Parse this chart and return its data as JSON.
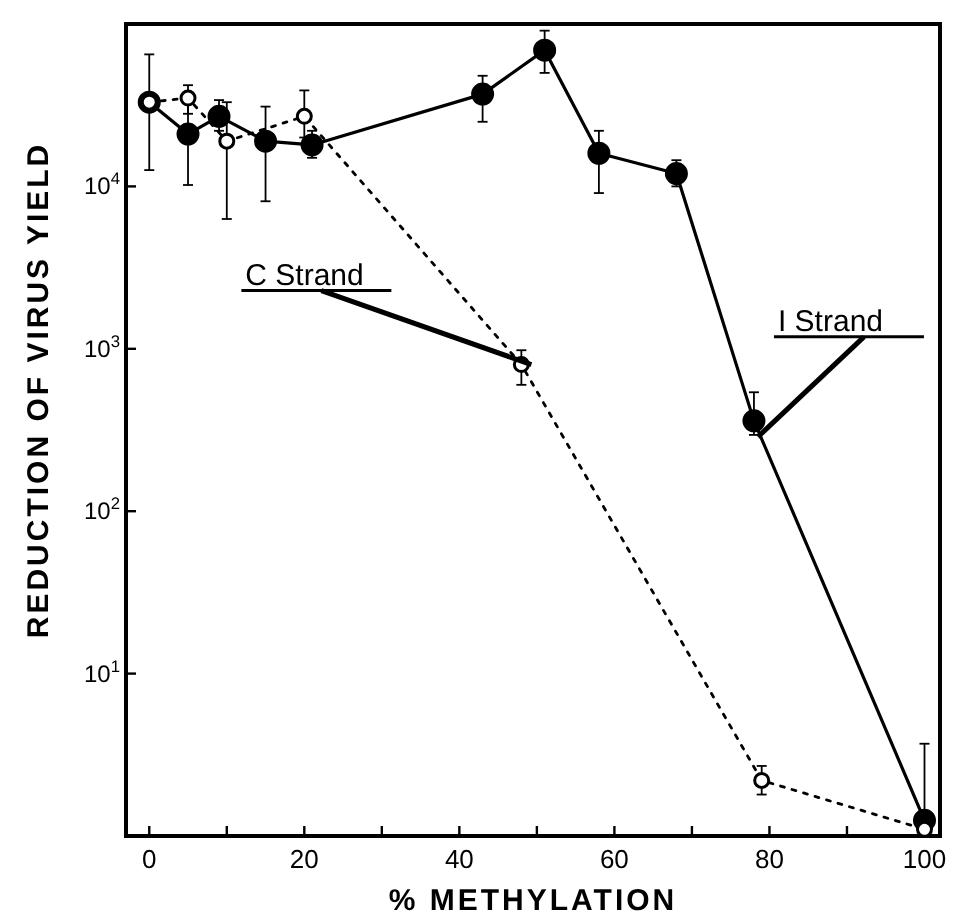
{
  "chart_data": {
    "type": "line",
    "xlabel": "% METHYLATION",
    "ylabel": "REDUCTION OF VIRUS YIELD",
    "log": "y",
    "xlim": [
      -3,
      102
    ],
    "ylim": [
      1,
      100000
    ],
    "xticks": [
      0,
      {
        "value": 10,
        "label": null
      },
      20,
      {
        "value": 30,
        "label": null
      },
      40,
      {
        "value": 50,
        "label": null
      },
      60,
      {
        "value": 70,
        "label": null
      },
      80,
      {
        "value": 90,
        "label": null
      },
      100
    ],
    "yticks": [
      {
        "value": 10,
        "label": "10$^{1}$"
      },
      {
        "value": 100,
        "label": "10$^{2}$"
      },
      {
        "value": 1000,
        "label": "10$^{3}$"
      },
      {
        "value": 10000,
        "label": "10$^{4}$"
      }
    ],
    "grid": false,
    "marker": "circle",
    "series": [
      {
        "name": "C Strand",
        "color": "#000000",
        "line_style": "dotted",
        "x": [
          0,
          5,
          10,
          20,
          48,
          79,
          100
        ],
        "values": [
          33000,
          35000,
          19000,
          27000,
          800,
          2.2,
          1.1
        ],
        "errors": [
          null,
          [
            28000,
            42000
          ],
          [
            6300,
            33000
          ],
          [
            20000,
            39000
          ],
          [
            600,
            980
          ],
          [
            1.8,
            2.7
          ],
          null
        ]
      },
      {
        "name": "I Strand",
        "color": "#000000",
        "line_style": "solid",
        "x": [
          0,
          5,
          9,
          15,
          21,
          43,
          51,
          58,
          68,
          78,
          100
        ],
        "values": [
          33000,
          21000,
          27000,
          19000,
          18000,
          37000,
          69000,
          16000,
          12000,
          360,
          1.25
        ],
        "errors": [
          [
            12600,
            65000
          ],
          [
            10200,
            36000
          ],
          [
            22000,
            34000
          ],
          [
            8100,
            31000
          ],
          [
            15000,
            22000
          ],
          [
            25000,
            48000
          ],
          [
            50000,
            91000
          ],
          [
            9100,
            22000
          ],
          [
            10000,
            14500
          ],
          [
            295,
            540
          ],
          [
            1,
            3.7
          ]
        ]
      }
    ]
  }
}
